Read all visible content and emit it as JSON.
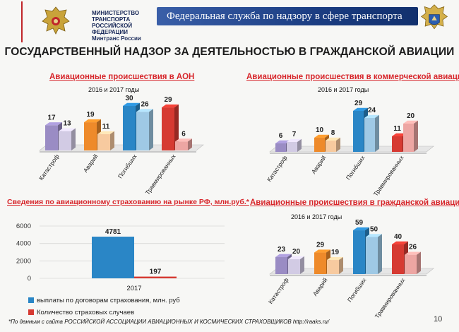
{
  "header": {
    "ministry_line1": "МИНИСТЕРСТВО ТРАНСПОРТА",
    "ministry_line2": "РОССИЙСКОЙ ФЕДЕРАЦИИ",
    "ministry_line3": "Минтранс России",
    "banner": "Федеральная служба по надзору в сфере транспорта"
  },
  "main_title": "ГОСУДАРСТВЕННЫЙ НАДЗОР ЗА ДЕЯТЕЛЬНОСТЬЮ В ГРАЖДАНСКОЙ АВИАЦИИ",
  "colors": {
    "purple": "#9a8cc4",
    "orange": "#ee8a2a",
    "blue": "#2a86c6",
    "red": "#d63a32",
    "title_red": "#d7262b"
  },
  "chart_data": [
    {
      "type": "bar",
      "title": "Авиационные происшествия в АОН",
      "subtitle": "2016 и 2017 годы",
      "categories": [
        "Катастроф",
        "Аварий",
        "Погибших",
        "Травмированных"
      ],
      "series": [
        {
          "values": [
            17,
            19,
            30,
            29
          ]
        },
        {
          "values": [
            13,
            11,
            26,
            6
          ]
        }
      ]
    },
    {
      "type": "bar",
      "title": "Авиационные происшествия в коммерческой авиации",
      "subtitle": "2016 и 2017 годы",
      "categories": [
        "Катастроф",
        "Аварий",
        "Погибших",
        "Травмированных"
      ],
      "series": [
        {
          "values": [
            6,
            10,
            29,
            11
          ]
        },
        {
          "values": [
            7,
            8,
            24,
            20
          ]
        }
      ]
    },
    {
      "type": "bar",
      "title": "Сведения по авиационному страхованию на рынке РФ, млн.руб.*",
      "categories": [
        "2017"
      ],
      "yticks": [
        0,
        2000,
        4000,
        6000
      ],
      "ylim": [
        0,
        6000
      ],
      "series": [
        {
          "name": "выплаты по договорам страхования, млн. руб",
          "values": [
            4781
          ]
        },
        {
          "name": "Количество страховых случаев",
          "values": [
            197
          ]
        }
      ]
    },
    {
      "type": "bar",
      "title": "Авиационные происшествия в гражданской авиации",
      "subtitle": "2016 и 2017 годы",
      "categories": [
        "Катастроф",
        "Аварий",
        "Погибших",
        "Травмированных"
      ],
      "series": [
        {
          "values": [
            23,
            29,
            59,
            40
          ]
        },
        {
          "values": [
            20,
            19,
            50,
            26
          ]
        }
      ]
    }
  ],
  "footnote": "*По данным с сайта РОССИЙСКОЙ АССОЦИАЦИИ АВИАЦИОННЫХ И КОСМИЧЕСКИХ СТРАХОВЩИКОВ http://raaks.ru/",
  "page_number": "10"
}
